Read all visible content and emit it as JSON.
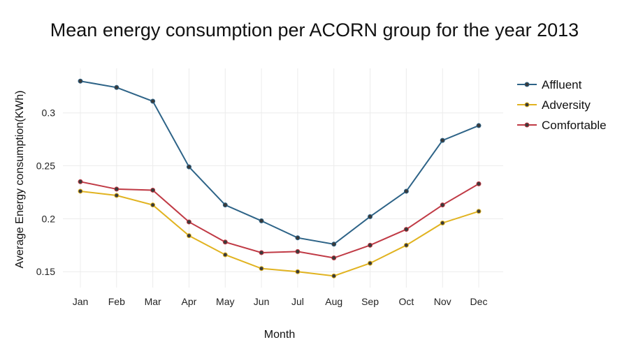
{
  "chart_data": {
    "type": "line",
    "title": "Mean energy consumption per ACORN group for the year 2013",
    "xlabel": "Month",
    "ylabel": "Average Energy consumption(KWh)",
    "categories": [
      "Jan",
      "Feb",
      "Mar",
      "Apr",
      "May",
      "Jun",
      "Jul",
      "Aug",
      "Sep",
      "Oct",
      "Nov",
      "Dec"
    ],
    "ylim": [
      0.135,
      0.342
    ],
    "yticks": [
      0.15,
      0.2,
      0.25,
      0.3
    ],
    "ytick_labels": [
      "0.15",
      "0.2",
      "0.25",
      "0.3"
    ],
    "grid": true,
    "legend_position": "top-right",
    "series": [
      {
        "name": "Affluent",
        "color": "#2d6387",
        "values": [
          0.33,
          0.324,
          0.311,
          0.249,
          0.213,
          0.198,
          0.182,
          0.176,
          0.202,
          0.226,
          0.274,
          0.288
        ]
      },
      {
        "name": "Adversity",
        "color": "#e1b320",
        "values": [
          0.226,
          0.222,
          0.213,
          0.184,
          0.166,
          0.153,
          0.15,
          0.146,
          0.158,
          0.175,
          0.196,
          0.207
        ]
      },
      {
        "name": "Comfortable",
        "color": "#c03a45",
        "values": [
          0.235,
          0.228,
          0.227,
          0.197,
          0.178,
          0.168,
          0.169,
          0.163,
          0.175,
          0.19,
          0.213,
          0.233
        ]
      }
    ],
    "marker_color": "#3a3a3a"
  }
}
